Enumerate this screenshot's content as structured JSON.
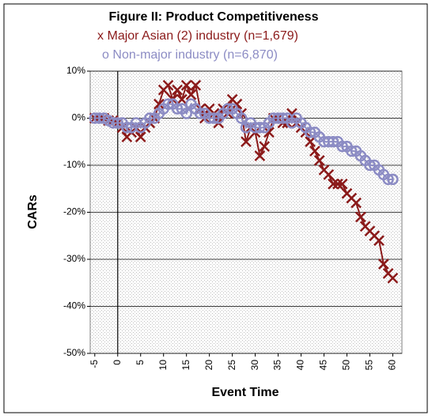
{
  "chart_data": {
    "type": "line",
    "title": "Figure II: Product Competitiveness",
    "x_label": "Event Time",
    "y_label": "CARs",
    "x": [
      -5,
      -4,
      -3,
      -2,
      -1,
      0,
      1,
      2,
      3,
      4,
      5,
      6,
      7,
      8,
      9,
      10,
      11,
      12,
      13,
      14,
      15,
      16,
      17,
      18,
      19,
      20,
      21,
      22,
      23,
      24,
      25,
      26,
      27,
      28,
      29,
      30,
      31,
      32,
      33,
      34,
      35,
      36,
      37,
      38,
      39,
      40,
      41,
      42,
      43,
      44,
      45,
      46,
      47,
      48,
      49,
      50,
      51,
      52,
      53,
      54,
      55,
      56,
      57,
      58,
      59,
      60
    ],
    "series": [
      {
        "name": "x Major Asian (2) industry (n=1,679)",
        "color": "#8b1a1a",
        "marker": "x",
        "values": [
          0,
          0,
          0,
          -0.5,
          -0.5,
          -1,
          -2,
          -4,
          -3,
          -2,
          -4,
          -2,
          -1,
          0,
          3,
          6,
          7,
          4,
          6,
          4,
          7,
          5,
          7,
          2,
          0,
          2,
          1,
          -1,
          2,
          1,
          4,
          3,
          1,
          -5,
          -2,
          -3,
          -8,
          -6,
          -3,
          0,
          0,
          -1,
          -1,
          1,
          -1,
          -2,
          -3,
          -5,
          -7,
          -9,
          -11,
          -12,
          -14,
          -14,
          -14,
          -16,
          -17,
          -18,
          -21,
          -23,
          -24,
          -25,
          -26,
          -31,
          -33,
          -34
        ]
      },
      {
        "name": "o Non-major industry (n=6,870)",
        "color": "#8c8cc4",
        "marker": "o",
        "values": [
          0,
          0,
          0,
          -0.5,
          -1,
          -1,
          -1,
          -2,
          -2,
          -1,
          -2,
          -1,
          0,
          0,
          1,
          2,
          3,
          3,
          2,
          2,
          1,
          3,
          2,
          1,
          1,
          0,
          0,
          0,
          1,
          2,
          2,
          1,
          0,
          -2,
          -1,
          -2,
          -2,
          -2,
          -1,
          0,
          0,
          0,
          0,
          -1,
          0,
          -1,
          -2,
          -3,
          -3,
          -4,
          -5,
          -5,
          -5,
          -5,
          -6,
          -6,
          -7,
          -7,
          -8,
          -9,
          -10,
          -10,
          -11,
          -12,
          -13,
          -13
        ]
      }
    ],
    "xlim": [
      -6,
      62
    ],
    "xticks": [
      -5,
      0,
      5,
      10,
      15,
      20,
      25,
      30,
      35,
      40,
      45,
      50,
      55,
      60
    ],
    "ylim": [
      -50,
      10
    ],
    "yticks": [
      {
        "value": -50,
        "label": "-50%"
      },
      {
        "value": -40,
        "label": "-40%"
      },
      {
        "value": -30,
        "label": "-30%"
      },
      {
        "value": -20,
        "label": "-20%"
      },
      {
        "value": -10,
        "label": "-10%"
      },
      {
        "value": 0,
        "label": "0%"
      },
      {
        "value": 10,
        "label": "10%"
      }
    ],
    "grid": true
  }
}
